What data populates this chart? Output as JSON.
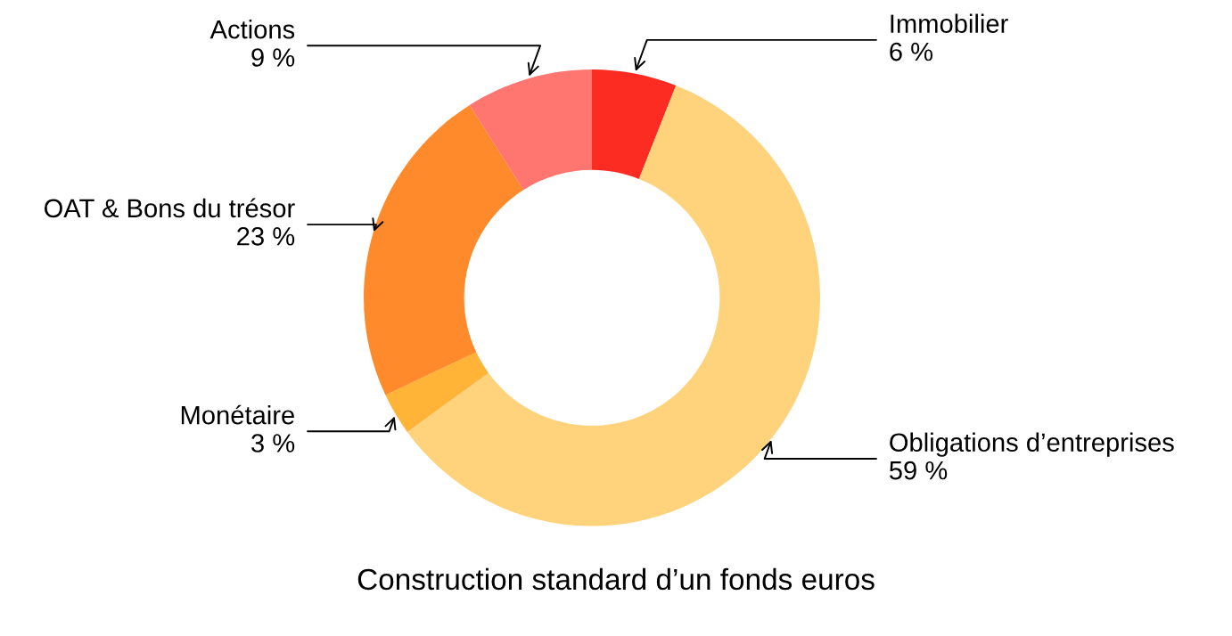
{
  "chart_data": {
    "type": "donut",
    "title": "Construction standard d’un fonds euros",
    "categories": [
      "Immobilier",
      "Obligations d’entreprises",
      "Monétaire",
      "OAT & Bons du trésor",
      "Actions"
    ],
    "values": [
      6,
      59,
      3,
      23,
      9
    ],
    "value_labels": [
      "6 %",
      "59 %",
      "3 %",
      "23 %",
      "9 %"
    ],
    "colors": [
      "#fd2c22",
      "#ffd27c",
      "#ffb337",
      "#fe8a2c",
      "#ff7570"
    ],
    "legend": false
  }
}
